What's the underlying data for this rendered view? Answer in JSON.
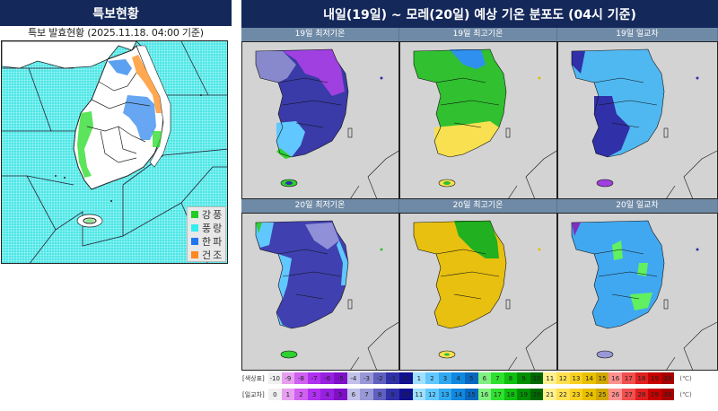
{
  "left_panel": {
    "title": "특보현황",
    "subtitle": "특보 발효현황 (2025.11.18. 04:00 기준)",
    "legend": [
      {
        "label": "강풍",
        "color": "#22cc22"
      },
      {
        "label": "풍랑",
        "color": "#33eeee"
      },
      {
        "label": "한파",
        "color": "#2277ee"
      },
      {
        "label": "건조",
        "color": "#ff8822"
      }
    ],
    "sea_color": "#4fe6e6"
  },
  "right_panel": {
    "title": "내일(19일) ~ 모레(20일) 예상 기온 분포도 (04시 기준)",
    "maps": [
      {
        "title": "19일 최저기온",
        "scheme": "cold_purple"
      },
      {
        "title": "19일 최고기온",
        "scheme": "green"
      },
      {
        "title": "19일 일교차",
        "scheme": "light_blue_dark"
      },
      {
        "title": "20일 최저기온",
        "scheme": "blue"
      },
      {
        "title": "20일 최고기온",
        "scheme": "yellow"
      },
      {
        "title": "20일 일교차",
        "scheme": "light_blue_green"
      }
    ],
    "colorbars": [
      {
        "label": "[색상표]",
        "values": [
          "-10",
          "-9",
          "-8",
          "-7",
          "-6",
          "-5",
          "-4",
          "-3",
          "-2",
          "-1",
          "0",
          "1",
          "2",
          "3",
          "4",
          "5",
          "6",
          "7",
          "8",
          "9",
          "10",
          "11",
          "12",
          "13",
          "14",
          "15",
          "16",
          "17",
          "18",
          "19",
          "20"
        ],
        "unit": "(℃)"
      },
      {
        "label": "[일교차]",
        "values": [
          "0",
          "1",
          "2",
          "3",
          "4",
          "5",
          "6",
          "7",
          "8",
          "9",
          "10",
          "11",
          "12",
          "13",
          "14",
          "15",
          "16",
          "17",
          "18",
          "19",
          "20",
          "21",
          "22",
          "23",
          "24",
          "25",
          "26",
          "27",
          "28",
          "29",
          "30"
        ],
        "unit": "(℃)"
      }
    ],
    "colors": [
      "#f0f0f0",
      "#e7a0f0",
      "#d060f0",
      "#b030f0",
      "#9820e0",
      "#8010c8",
      "#c0c0e8",
      "#9898d8",
      "#6060c0",
      "#3030a8",
      "#101090",
      "#a0e0ff",
      "#60c8ff",
      "#30a8f0",
      "#1088e0",
      "#0868c0",
      "#80f080",
      "#30e030",
      "#10c010",
      "#009000",
      "#006800",
      "#fff090",
      "#ffe050",
      "#f8d020",
      "#e8c000",
      "#d0a800",
      "#ff9090",
      "#f05050",
      "#e02020",
      "#c80000",
      "#a80000"
    ]
  }
}
